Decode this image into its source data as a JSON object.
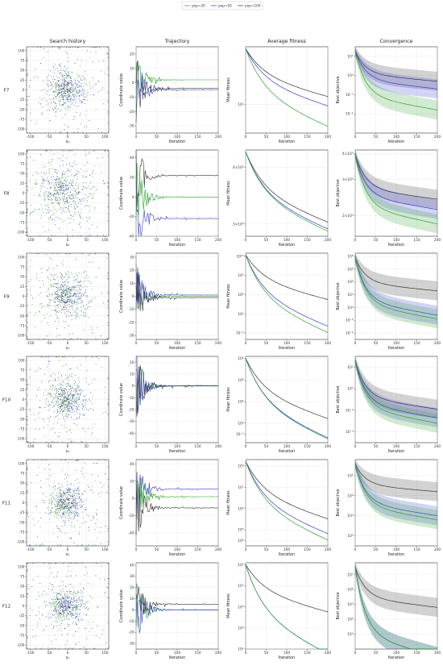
{
  "legend": {
    "entries": [
      {
        "label": "pop=20",
        "color": "#2ca02c"
      },
      {
        "label": "pop=50",
        "color": "#3a3ad6"
      },
      {
        "label": "pop=100",
        "color": "#333333"
      }
    ]
  },
  "columns": {
    "search": "Search history",
    "trajectory": "Trajectory",
    "fitness": "Average fitness",
    "convergence": "Convergence"
  },
  "axis_labels": {
    "x1": "x₁",
    "x2": "x₂",
    "iteration": "Iteration",
    "coord": "Coordinate value",
    "mean_fitness": "Mean fitness",
    "best_objective": "Best objective"
  },
  "rows": [
    "F7",
    "F8",
    "F9",
    "F10",
    "F11",
    "F12"
  ],
  "chart_data": [
    {
      "function": "F7",
      "search": {
        "type": "scatter",
        "xlim": [
          -110,
          110
        ],
        "ylim": [
          -110,
          110
        ],
        "xticks": [
          -100,
          -50,
          0,
          50,
          100
        ],
        "yticks": [
          100,
          75,
          50,
          25,
          0,
          -25,
          -50,
          -75,
          -100
        ],
        "center": [
          0,
          0
        ],
        "spread": 30
      },
      "trajectory": {
        "type": "line",
        "xlim": [
          0,
          200
        ],
        "ylim": [
          -35,
          25
        ],
        "xticks": [
          0,
          50,
          100,
          150,
          200
        ],
        "yticks": [
          20,
          10,
          0,
          -10,
          -20,
          -30
        ],
        "series": [
          {
            "color": "#2ca02c",
            "final": 2
          },
          {
            "color": "#3a3ad6",
            "final": -5
          },
          {
            "color": "#333333",
            "final": -4
          }
        ]
      },
      "fitness": {
        "type": "line",
        "log": true,
        "ylim_exp": [
          0.3,
          2.4
        ],
        "ytick_labels": [
          {
            "exp": 1,
            "label": "10¹"
          }
        ],
        "series": [
          {
            "color": "#333333",
            "end_exp": 1.18
          },
          {
            "color": "#3a3ad6",
            "end_exp": 0.95
          },
          {
            "color": "#2ca02c",
            "end_exp": 0.45
          }
        ]
      },
      "convergence": {
        "type": "line",
        "log": true,
        "ylim_exp": [
          -3,
          1.5
        ],
        "ytick_labels": [
          {
            "exp": 1,
            "label": "10¹"
          },
          {
            "exp": 0,
            "label": "10⁰"
          },
          {
            "exp": -1,
            "label": "10⁻¹"
          },
          {
            "exp": -2,
            "label": "10⁻²"
          }
        ],
        "series": [
          {
            "color": "#333333",
            "end_exp": -0.3
          },
          {
            "color": "#3a3ad6",
            "end_exp": -0.7
          },
          {
            "color": "#2ca02c",
            "end_exp": -1.8
          }
        ]
      }
    },
    {
      "function": "F8",
      "search": {
        "type": "scatter",
        "xlim": [
          -110,
          110
        ],
        "ylim": [
          -110,
          110
        ],
        "xticks": [
          -100,
          -50,
          0,
          50,
          100
        ],
        "yticks": [
          100,
          75,
          50,
          25,
          0,
          -25,
          -50,
          -75,
          -100
        ],
        "center": [
          -10,
          5
        ],
        "spread": 45
      },
      "trajectory": {
        "type": "line",
        "xlim": [
          0,
          200
        ],
        "ylim": [
          -40,
          48
        ],
        "xticks": [
          0,
          50,
          100,
          150,
          200
        ],
        "yticks": [
          40,
          20,
          0,
          -20,
          -40
        ],
        "series": [
          {
            "color": "#333333",
            "final": 22
          },
          {
            "color": "#2ca02c",
            "final": 0
          },
          {
            "color": "#3a3ad6",
            "final": -22
          }
        ]
      },
      "fitness": {
        "type": "line",
        "log": true,
        "ylim_exp": [
          3.45,
          3.64
        ],
        "ytick_labels": [
          {
            "exp": 3.602,
            "label": "4×10³"
          },
          {
            "exp": 3.477,
            "label": "3×10³"
          }
        ],
        "series": [
          {
            "color": "#333333",
            "end_exp": 3.48
          },
          {
            "color": "#3a3ad6",
            "end_exp": 3.465
          },
          {
            "color": "#2ca02c",
            "end_exp": 3.46
          }
        ]
      },
      "convergence": {
        "type": "line",
        "log": true,
        "ylim_exp": [
          3.2,
          3.62
        ],
        "ytick_labels": [
          {
            "exp": 3.602,
            "label": "4×10³"
          },
          {
            "exp": 3.477,
            "label": "3×10³"
          },
          {
            "exp": 3.301,
            "label": "2×10³"
          }
        ],
        "series": [
          {
            "color": "#333333",
            "end_exp": 3.38
          },
          {
            "color": "#3a3ad6",
            "end_exp": 3.33
          },
          {
            "color": "#2ca02c",
            "end_exp": 3.26
          }
        ]
      }
    },
    {
      "function": "F9",
      "search": {
        "type": "scatter",
        "xlim": [
          -110,
          110
        ],
        "ylim": [
          -110,
          110
        ],
        "xticks": [
          -100,
          -50,
          0,
          50,
          100
        ],
        "yticks": [
          100,
          75,
          50,
          25,
          0,
          -25,
          -50,
          -75,
          -100
        ],
        "center": [
          0,
          0
        ],
        "spread": 35
      },
      "trajectory": {
        "type": "line",
        "xlim": [
          0,
          200
        ],
        "ylim": [
          -33,
          33
        ],
        "xticks": [
          0,
          50,
          100,
          150,
          200
        ],
        "yticks": [
          30,
          20,
          10,
          0,
          -10,
          -20,
          -30
        ],
        "series": [
          {
            "color": "#2ca02c",
            "final": 0
          },
          {
            "color": "#3a3ad6",
            "final": 1
          },
          {
            "color": "#333333",
            "final": -1
          }
        ]
      },
      "fitness": {
        "type": "line",
        "log": true,
        "ylim_exp": [
          -3,
          10.5
        ],
        "ytick_labels": [
          {
            "exp": 10,
            "label": "10¹⁰"
          },
          {
            "exp": 7,
            "label": "10⁷"
          },
          {
            "exp": 4,
            "label": "10⁴"
          },
          {
            "exp": 1,
            "label": "10¹"
          },
          {
            "exp": -2,
            "label": "10⁻²"
          }
        ],
        "series": [
          {
            "color": "#333333",
            "end_exp": 3.2
          },
          {
            "color": "#3a3ad6",
            "end_exp": -1.0
          },
          {
            "color": "#2ca02c",
            "end_exp": -2.0
          }
        ]
      },
      "convergence": {
        "type": "line",
        "log": true,
        "ylim_exp": [
          -5,
          8.5
        ],
        "ytick_labels": [
          {
            "exp": 8,
            "label": "10⁸"
          },
          {
            "exp": 6,
            "label": "10⁶"
          },
          {
            "exp": 4,
            "label": "10⁴"
          },
          {
            "exp": 2,
            "label": "10²"
          },
          {
            "exp": 0,
            "label": "10⁰"
          },
          {
            "exp": -2,
            "label": "10⁻²"
          },
          {
            "exp": -4,
            "label": "10⁻⁴"
          }
        ],
        "series": [
          {
            "color": "#333333",
            "end_exp": 2.6
          },
          {
            "color": "#3a3ad6",
            "end_exp": -1.2
          },
          {
            "color": "#2ca02c",
            "end_exp": -1.8
          }
        ]
      }
    },
    {
      "function": "F10",
      "search": {
        "type": "scatter",
        "xlim": [
          -110,
          110
        ],
        "ylim": [
          -110,
          110
        ],
        "xticks": [
          -100,
          -50,
          0,
          50,
          100
        ],
        "yticks": [
          100,
          75,
          50,
          25,
          0,
          -25,
          -50,
          -75,
          -100
        ],
        "center": [
          0,
          0
        ],
        "spread": 30
      },
      "trajectory": {
        "type": "line",
        "xlim": [
          0,
          200
        ],
        "ylim": [
          -48,
          25
        ],
        "xticks": [
          0,
          50,
          100,
          150,
          200
        ],
        "yticks": [
          20,
          10,
          0,
          -10,
          -20,
          -30,
          -40
        ],
        "series": [
          {
            "color": "#2ca02c",
            "final": 0
          },
          {
            "color": "#3a3ad6",
            "final": 0
          },
          {
            "color": "#333333",
            "final": 0
          }
        ]
      },
      "fitness": {
        "type": "line",
        "log": true,
        "ylim_exp": [
          -1.8,
          6.2
        ],
        "ytick_labels": [
          {
            "exp": 6,
            "label": "10⁶"
          },
          {
            "exp": 4,
            "label": "10⁴"
          },
          {
            "exp": 2,
            "label": "10²"
          },
          {
            "exp": 0,
            "label": "10⁰"
          },
          {
            "exp": -1,
            "label": "10⁻¹"
          }
        ],
        "series": [
          {
            "color": "#333333",
            "end_exp": 0.4
          },
          {
            "color": "#3a3ad6",
            "end_exp": -1.4
          },
          {
            "color": "#2ca02c",
            "end_exp": -1.5
          }
        ]
      },
      "convergence": {
        "type": "line",
        "log": true,
        "ylim_exp": [
          -4,
          4
        ],
        "ytick_labels": [
          {
            "exp": 3,
            "label": "10³"
          },
          {
            "exp": 1,
            "label": "10¹"
          },
          {
            "exp": -1,
            "label": "10⁻¹"
          },
          {
            "exp": -3,
            "label": "10⁻³"
          }
        ],
        "series": [
          {
            "color": "#333333",
            "end_exp": -0.9
          },
          {
            "color": "#3a3ad6",
            "end_exp": -1.7
          },
          {
            "color": "#2ca02c",
            "end_exp": -2.2
          }
        ]
      }
    },
    {
      "function": "F11",
      "search": {
        "type": "scatter",
        "xlim": [
          -110,
          110
        ],
        "ylim": [
          -110,
          110
        ],
        "xticks": [
          -100,
          -50,
          0,
          50,
          100
        ],
        "yticks": [
          100,
          75,
          50,
          25,
          0,
          -25,
          -50,
          -75,
          -100
        ],
        "center": [
          0,
          0
        ],
        "spread": 30
      },
      "trajectory": {
        "type": "line",
        "xlim": [
          0,
          200
        ],
        "ylim": [
          -55,
          45
        ],
        "xticks": [
          0,
          50,
          100,
          150,
          200
        ],
        "yticks": [
          40,
          20,
          0,
          -20,
          -40
        ],
        "series": [
          {
            "color": "#3a3ad6",
            "final": 11
          },
          {
            "color": "#2ca02c",
            "final": 2
          },
          {
            "color": "#333333",
            "final": -11
          }
        ]
      },
      "fitness": {
        "type": "line",
        "log": true,
        "ylim_exp": [
          1.5,
          9.6
        ],
        "ytick_labels": [
          {
            "exp": 9,
            "label": "10⁹"
          },
          {
            "exp": 7,
            "label": "10⁷"
          },
          {
            "exp": 5,
            "label": "10⁵"
          },
          {
            "exp": 3,
            "label": "10³"
          },
          {
            "exp": 2,
            "label": "10²"
          }
        ],
        "series": [
          {
            "color": "#333333",
            "end_exp": 4.0
          },
          {
            "color": "#3a3ad6",
            "end_exp": 2.6
          },
          {
            "color": "#2ca02c",
            "end_exp": 2.0
          }
        ]
      },
      "convergence": {
        "type": "line",
        "log": true,
        "ylim_exp": [
          1.5,
          5.8
        ],
        "ytick_labels": [
          {
            "exp": 5,
            "label": "10⁵"
          },
          {
            "exp": 4,
            "label": "10⁴"
          },
          {
            "exp": 3,
            "label": "10³"
          },
          {
            "exp": 2,
            "label": "10²"
          }
        ],
        "series": [
          {
            "color": "#333333",
            "end_exp": 4.2
          },
          {
            "color": "#3a3ad6",
            "end_exp": 3.0
          },
          {
            "color": "#2ca02c",
            "end_exp": 2.8
          }
        ]
      }
    },
    {
      "function": "F12",
      "search": {
        "type": "scatter",
        "xlim": [
          -110,
          110
        ],
        "ylim": [
          -110,
          110
        ],
        "xticks": [
          -100,
          -50,
          0,
          50,
          100
        ],
        "yticks": [
          100,
          75,
          50,
          25,
          0,
          -25,
          -50,
          -75,
          -100
        ],
        "center": [
          0,
          0
        ],
        "spread": 30
      },
      "trajectory": {
        "type": "line",
        "xlim": [
          0,
          200
        ],
        "ylim": [
          -35,
          42
        ],
        "xticks": [
          0,
          50,
          100,
          150,
          200
        ],
        "yticks": [
          40,
          30,
          20,
          10,
          0,
          -10,
          -20,
          -30
        ],
        "series": [
          {
            "color": "#2ca02c",
            "final": 0
          },
          {
            "color": "#3a3ad6",
            "final": 0
          },
          {
            "color": "#333333",
            "final": 5
          }
        ]
      },
      "fitness": {
        "type": "line",
        "log": true,
        "ylim_exp": [
          1,
          9.2
        ],
        "ytick_labels": [
          {
            "exp": 9,
            "label": "10⁹"
          },
          {
            "exp": 7,
            "label": "10⁷"
          },
          {
            "exp": 5,
            "label": "10⁵"
          },
          {
            "exp": 3,
            "label": "10³"
          },
          {
            "exp": 1,
            "label": "10¹"
          }
        ],
        "series": [
          {
            "color": "#333333",
            "end_exp": 4.5
          },
          {
            "color": "#3a3ad6",
            "end_exp": 0.5
          },
          {
            "color": "#2ca02c",
            "end_exp": 0.5
          }
        ]
      },
      "convergence": {
        "type": "line",
        "log": true,
        "ylim_exp": [
          2,
          7.8
        ],
        "ytick_labels": [
          {
            "exp": 7,
            "label": "10⁷"
          },
          {
            "exp": 6,
            "label": "10⁶"
          },
          {
            "exp": 5,
            "label": "10⁵"
          },
          {
            "exp": 4,
            "label": "10⁴"
          },
          {
            "exp": 3,
            "label": "10³"
          }
        ],
        "series": [
          {
            "color": "#333333",
            "end_exp": 4.8
          },
          {
            "color": "#3a3ad6",
            "end_exp": 1.5
          },
          {
            "color": "#2ca02c",
            "end_exp": 1.5
          }
        ]
      }
    }
  ]
}
